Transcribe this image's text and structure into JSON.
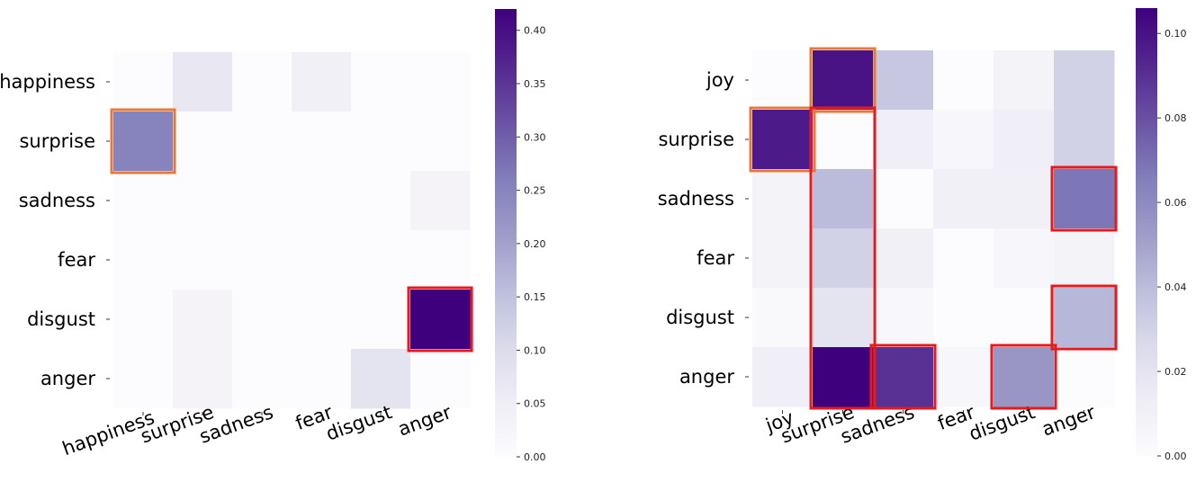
{
  "chart_data": [
    {
      "type": "heatmap",
      "rows": [
        "happiness",
        "surprise",
        "sadness",
        "fear",
        "disgust",
        "anger"
      ],
      "cols": [
        "happiness",
        "surprise",
        "sadness",
        "fear",
        "disgust",
        "anger"
      ],
      "values": [
        [
          0.0,
          0.07,
          0.0,
          0.04,
          0.0,
          0.0
        ],
        [
          0.25,
          0.0,
          0.0,
          0.0,
          0.0,
          0.0
        ],
        [
          0.0,
          0.0,
          0.0,
          0.0,
          0.0,
          0.03
        ],
        [
          0.0,
          0.0,
          0.0,
          0.0,
          0.0,
          0.0
        ],
        [
          0.0,
          0.03,
          0.0,
          0.0,
          0.0,
          0.42
        ],
        [
          0.0,
          0.03,
          0.0,
          0.0,
          0.08,
          0.0
        ]
      ],
      "vmin": 0.0,
      "vmax": 0.42,
      "colorbar_ticks": [
        "0.00",
        "0.05",
        "0.10",
        "0.15",
        "0.20",
        "0.25",
        "0.30",
        "0.35",
        "0.40"
      ],
      "colorbar_tick_values": [
        0.0,
        0.05,
        0.1,
        0.15,
        0.2,
        0.25,
        0.3,
        0.35,
        0.4
      ],
      "colormap": "Purples",
      "highlight_color_orange": "#e8773a",
      "highlight_color_red": "#e8191c",
      "highlights": [
        {
          "color": "orange",
          "row_start": 1,
          "row_end": 1,
          "col_start": 0,
          "col_end": 0
        },
        {
          "color": "red",
          "row_start": 4,
          "row_end": 4,
          "col_start": 5,
          "col_end": 5
        }
      ]
    },
    {
      "type": "heatmap",
      "rows": [
        "joy",
        "surprise",
        "sadness",
        "fear",
        "disgust",
        "anger"
      ],
      "cols": [
        "joy",
        "surprise",
        "sadness",
        "fear",
        "disgust",
        "anger"
      ],
      "values": [
        [
          0.0,
          0.1,
          0.035,
          0.0,
          0.008,
          0.03
        ],
        [
          0.097,
          0.0,
          0.012,
          0.005,
          0.012,
          0.03
        ],
        [
          0.008,
          0.04,
          0.0,
          0.01,
          0.01,
          0.068
        ],
        [
          0.008,
          0.03,
          0.01,
          0.0,
          0.005,
          0.008
        ],
        [
          0.003,
          0.02,
          0.004,
          0.0,
          0.0,
          0.042
        ],
        [
          0.012,
          0.106,
          0.09,
          0.005,
          0.055,
          0.0
        ]
      ],
      "vmin": 0.0,
      "vmax": 0.106,
      "colorbar_ticks": [
        "0.00",
        "0.02",
        "0.04",
        "0.06",
        "0.08",
        "0.10"
      ],
      "colorbar_tick_values": [
        0.0,
        0.02,
        0.04,
        0.06,
        0.08,
        0.1
      ],
      "colormap": "Purples",
      "highlight_color_orange": "#e8773a",
      "highlight_color_red": "#e8191c",
      "highlights": [
        {
          "color": "orange",
          "row_start": 0,
          "row_end": 0,
          "col_start": 1,
          "col_end": 1
        },
        {
          "color": "orange",
          "row_start": 1,
          "row_end": 1,
          "col_start": 0,
          "col_end": 0
        },
        {
          "color": "red",
          "row_start": 1,
          "row_end": 5,
          "col_start": 1,
          "col_end": 1
        },
        {
          "color": "red",
          "row_start": 2,
          "row_end": 2,
          "col_start": 5,
          "col_end": 5
        },
        {
          "color": "red",
          "row_start": 4,
          "row_end": 4,
          "col_start": 5,
          "col_end": 5
        },
        {
          "color": "red",
          "row_start": 5,
          "row_end": 5,
          "col_start": 2,
          "col_end": 2
        },
        {
          "color": "red",
          "row_start": 5,
          "row_end": 5,
          "col_start": 4,
          "col_end": 4
        }
      ]
    }
  ]
}
